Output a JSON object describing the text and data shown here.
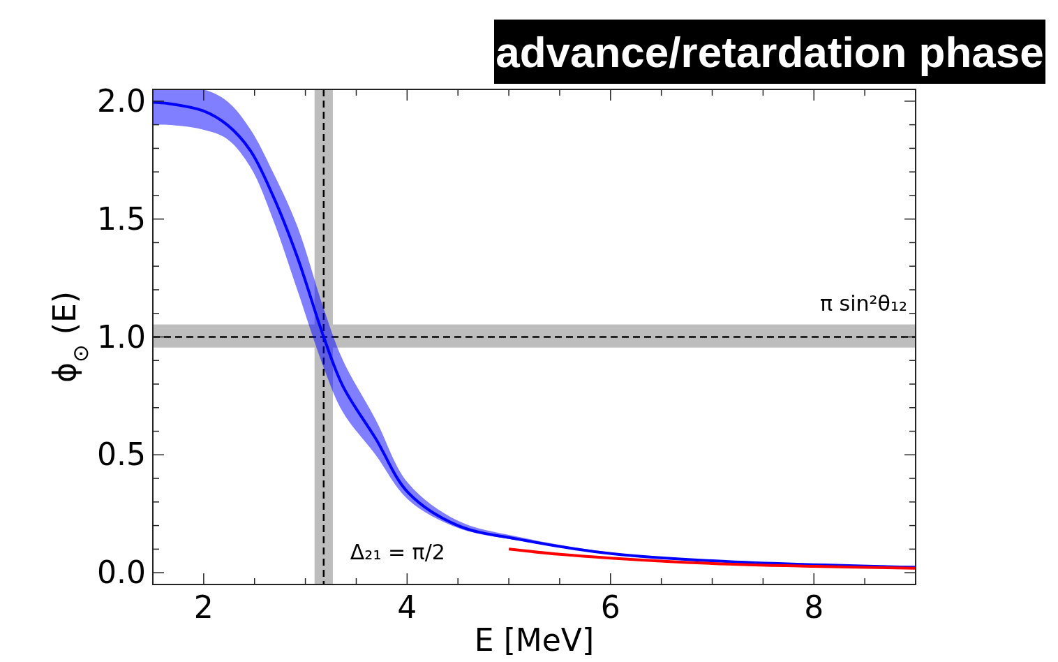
{
  "chart_data": {
    "type": "line",
    "title": "advance/retardation phase",
    "xlabel": "E [MeV]",
    "ylabel": "ϕ$_{⊙}$ (E)",
    "xlim": [
      1.5,
      9
    ],
    "ylim": [
      -0.05,
      2.05
    ],
    "xticks": [
      {
        "value": 1.5,
        "label": null
      },
      2,
      {
        "value": 2.5,
        "label": null
      },
      {
        "value": 3,
        "label": null
      },
      {
        "value": 3.5,
        "label": null
      },
      4,
      {
        "value": 4.5,
        "label": null
      },
      {
        "value": 5,
        "label": null
      },
      {
        "value": 5.5,
        "label": null
      },
      6,
      {
        "value": 6.5,
        "label": null
      },
      {
        "value": 7,
        "label": null
      },
      {
        "value": 7.5,
        "label": null
      },
      8,
      {
        "value": 8.5,
        "label": null
      }
    ],
    "yticks": [
      "0.0",
      {
        "value": 0.1,
        "label": null
      },
      {
        "value": 0.2,
        "label": null
      },
      {
        "value": 0.3,
        "label": null
      },
      {
        "value": 0.4,
        "label": null
      },
      {
        "value": 0.5,
        "label": "0.5"
      },
      {
        "value": 0.6,
        "label": null
      },
      {
        "value": 0.7,
        "label": null
      },
      {
        "value": 0.8,
        "label": null
      },
      {
        "value": 0.9,
        "label": null
      },
      {
        "value": 1.0,
        "label": "1.0"
      },
      {
        "value": 1.1,
        "label": null
      },
      {
        "value": 1.2,
        "label": null
      },
      {
        "value": 1.3,
        "label": null
      },
      {
        "value": 1.4,
        "label": null
      },
      {
        "value": 1.5,
        "label": "1.5"
      },
      {
        "value": 1.6,
        "label": null
      },
      {
        "value": 1.7,
        "label": null
      },
      {
        "value": 1.8,
        "label": null
      },
      {
        "value": 1.9,
        "label": null
      },
      {
        "value": 2.0,
        "label": "2.0"
      }
    ],
    "grid": false,
    "line_style": "solid",
    "marker": "none",
    "series": [
      {
        "color": "#0000ff",
        "x": [
          1.5,
          1.65,
          1.99,
          2.23,
          2.46,
          2.68,
          2.92,
          3.18,
          3.37,
          3.69,
          4.01,
          4.5,
          5.12,
          6.02,
          7.16,
          9.0
        ],
        "values": [
          1.995,
          1.99,
          1.96,
          1.9,
          1.79,
          1.6,
          1.34,
          1.0,
          0.79,
          0.57,
          0.34,
          0.2,
          0.14,
          0.08,
          0.047,
          0.023
        ],
        "lower": [
          1.9,
          1.9,
          1.88,
          1.84,
          1.72,
          1.5,
          1.2,
          0.87,
          0.68,
          0.5,
          0.31,
          0.19,
          0.135,
          0.078,
          0.045,
          0.022
        ],
        "upper": [
          2.05,
          2.05,
          2.05,
          2.0,
          1.88,
          1.7,
          1.47,
          1.12,
          0.9,
          0.65,
          0.38,
          0.22,
          0.15,
          0.085,
          0.05,
          0.024
        ]
      },
      {
        "color": "#ff0000",
        "x": [
          5.0,
          5.5,
          6.0,
          7.0,
          8.0,
          9.0
        ],
        "values": [
          0.1,
          0.078,
          0.062,
          0.039,
          0.027,
          0.019
        ]
      }
    ],
    "ref_lines": [
      {
        "axis": "y",
        "value": 1.0,
        "label": "π sin²θ₁₂",
        "color": "#000000",
        "line_style": "dashed"
      },
      {
        "axis": "x",
        "value": 3.18,
        "label": "Δ₂₁ = π/2",
        "color": "#000000",
        "line_style": "dashed"
      }
    ],
    "bands": [
      {
        "axis": "y",
        "from": 0.955,
        "to": 1.053,
        "color": "#bdbdbd"
      },
      {
        "axis": "x",
        "from": 3.09,
        "to": 3.27,
        "color": "#bdbdbd"
      }
    ]
  }
}
